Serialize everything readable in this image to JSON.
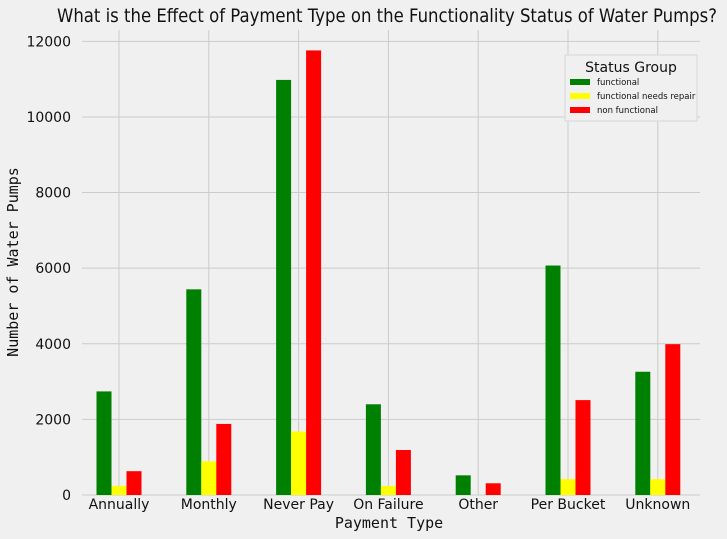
{
  "chart_data": {
    "type": "bar",
    "title": "What is the Effect of Payment Type on the Functionality Status of Water Pumps?",
    "xlabel": "Payment Type",
    "ylabel": "Number of Water Pumps",
    "categories": [
      "Annually",
      "Monthly",
      "Never Pay",
      "On Failure",
      "Other",
      "Per Bucket",
      "Unknown"
    ],
    "series": [
      {
        "name": "functional",
        "color": "#008000",
        "values": [
          2740,
          5440,
          10980,
          2400,
          520,
          6070,
          3260
        ]
      },
      {
        "name": "functional needs repair",
        "color": "#ffff00",
        "values": [
          240,
          890,
          1680,
          240,
          0,
          420,
          420
        ]
      },
      {
        "name": "non functional",
        "color": "#ff0000",
        "values": [
          630,
          1880,
          11760,
          1190,
          310,
          2510,
          3990
        ]
      }
    ],
    "ylim": [
      0,
      12300
    ],
    "yticks": [
      0,
      2000,
      4000,
      6000,
      8000,
      10000,
      12000
    ],
    "grid": true,
    "legend": {
      "title": "Status Group",
      "position": "top-right"
    }
  }
}
